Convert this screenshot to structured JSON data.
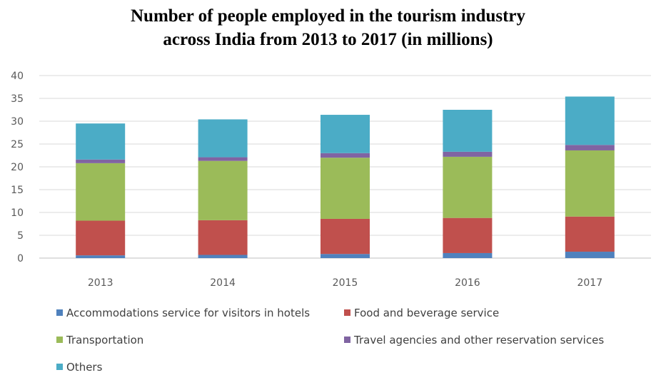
{
  "chart_data": {
    "type": "bar",
    "stacked": true,
    "title_lines": [
      "Number of people employed in the tourism industry",
      "across India from 2013 to 2017 (in millions)"
    ],
    "xlabel": "",
    "ylabel": "",
    "ylim": [
      0,
      40
    ],
    "yticks": [
      0,
      5,
      10,
      15,
      20,
      25,
      30,
      35,
      40
    ],
    "grid": true,
    "legend_position": "bottom",
    "categories": [
      "2013",
      "2014",
      "2015",
      "2016",
      "2017"
    ],
    "series": [
      {
        "name": "Accommodations service for visitors in hotels",
        "color": "#4f81bd",
        "values": [
          0.6,
          0.7,
          0.9,
          1.1,
          1.4
        ]
      },
      {
        "name": "Food and beverage service",
        "color": "#c0504d",
        "values": [
          7.6,
          7.6,
          7.7,
          7.7,
          7.7
        ]
      },
      {
        "name": "Transportation",
        "color": "#9bbb59",
        "values": [
          12.6,
          13.0,
          13.4,
          13.4,
          14.5
        ]
      },
      {
        "name": "Travel agencies and other reservation services",
        "color": "#8064a2",
        "values": [
          0.8,
          0.8,
          1.0,
          1.1,
          1.2
        ]
      },
      {
        "name": "Others",
        "color": "#4bacc6",
        "values": [
          7.9,
          8.3,
          8.4,
          9.2,
          10.6
        ]
      }
    ]
  }
}
